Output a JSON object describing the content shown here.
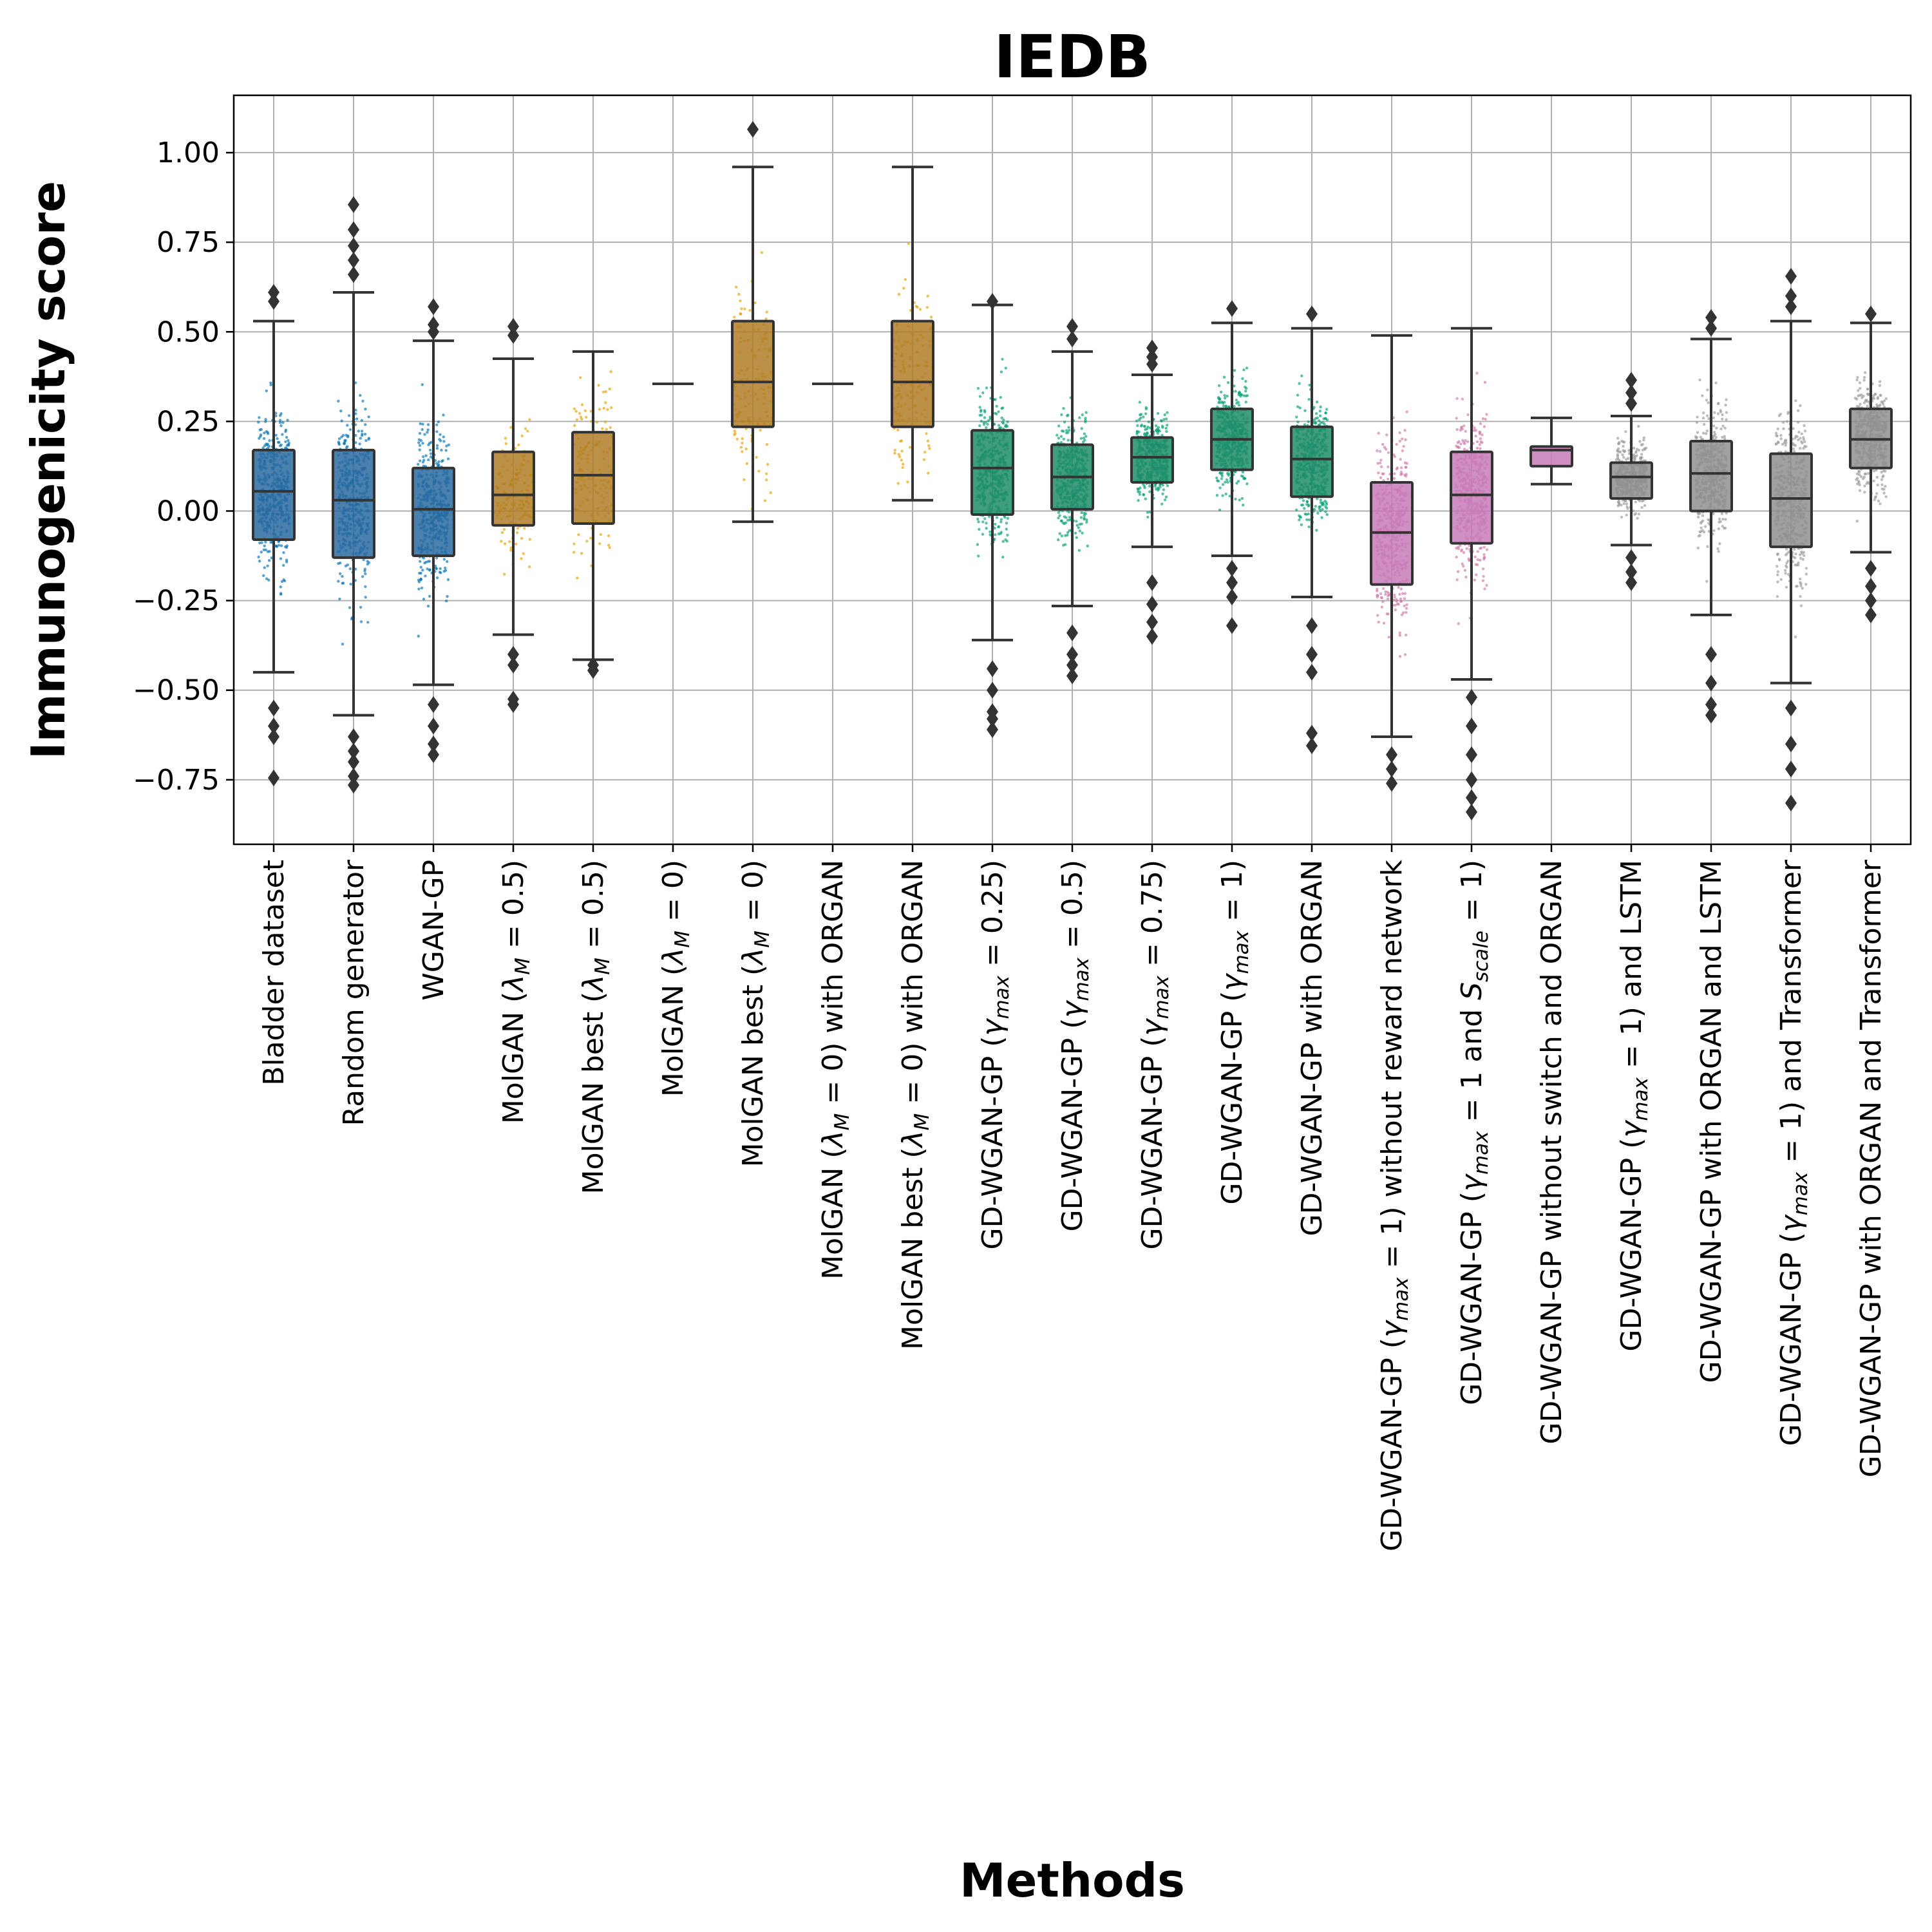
{
  "chart_data": {
    "type": "box",
    "title": "IEDB",
    "xlabel": "Methods",
    "ylabel": "Immunogenicity score",
    "ylim": [
      -0.93,
      1.16
    ],
    "yticks": [
      1.0,
      0.75,
      0.5,
      0.25,
      0.0,
      -0.25,
      -0.5,
      -0.75
    ],
    "ytick_labels": [
      "1.00",
      "0.75",
      "0.50",
      "0.25",
      "0.00",
      "−0.25",
      "−0.50",
      "−0.75"
    ],
    "grid": true,
    "colors": {
      "blue": "#2a6aa0",
      "blue_points": "#0072b2",
      "orange": "#b07c26",
      "orange_points": "#e69f00",
      "green": "#208c6a",
      "green_points": "#009e73",
      "pink": "#c87bb8",
      "pink_points": "#cc79a7",
      "gray": "#8f8f8f",
      "gray_points": "#999999",
      "line": "#333333"
    },
    "series": [
      {
        "label": "Bladder dataset",
        "color": "blue",
        "q1": -0.08,
        "median": 0.055,
        "q3": 0.17,
        "wlow": -0.45,
        "whigh": 0.53,
        "outliers": [
          0.61,
          0.585,
          -0.55,
          -0.6,
          -0.63,
          -0.745
        ],
        "points": true
      },
      {
        "label": "Random generator",
        "color": "blue",
        "q1": -0.13,
        "median": 0.03,
        "q3": 0.17,
        "wlow": -0.57,
        "whigh": 0.61,
        "outliers": [
          0.855,
          0.785,
          0.74,
          0.7,
          0.66,
          -0.63,
          -0.67,
          -0.7,
          -0.74,
          -0.765
        ],
        "points": true
      },
      {
        "label": "WGAN-GP",
        "color": "blue",
        "q1": -0.125,
        "median": 0.005,
        "q3": 0.12,
        "wlow": -0.485,
        "whigh": 0.475,
        "outliers": [
          0.57,
          0.52,
          0.5,
          -0.54,
          -0.6,
          -0.65,
          -0.68
        ],
        "points": true
      },
      {
        "label": "MolGAN (λₘ = 0.5)",
        "label_main": "MolGAN (",
        "label_sym": "λ",
        "label_sub": "M",
        "label_tail": " = 0.5)",
        "color": "orange",
        "q1": -0.04,
        "median": 0.045,
        "q3": 0.165,
        "wlow": -0.345,
        "whigh": 0.425,
        "outliers": [
          0.515,
          0.49,
          -0.4,
          -0.43,
          -0.525,
          -0.54
        ],
        "points": true
      },
      {
        "label": "MolGAN best (λₘ = 0.5)",
        "label_main": "MolGAN best (",
        "label_sym": "λ",
        "label_sub": "M",
        "label_tail": " = 0.5)",
        "color": "orange",
        "q1": -0.035,
        "median": 0.1,
        "q3": 0.22,
        "wlow": -0.415,
        "whigh": 0.445,
        "outliers": [
          -0.43,
          -0.445
        ],
        "points": true
      },
      {
        "label": "MolGAN (λₘ = 0)",
        "label_main": "MolGAN (",
        "label_sym": "λ",
        "label_sub": "M",
        "label_tail": " = 0)",
        "color": "orange",
        "q1": 0.355,
        "median": 0.355,
        "q3": 0.355,
        "wlow": 0.355,
        "whigh": 0.355,
        "outliers": [],
        "points": false
      },
      {
        "label": "MolGAN best (λₘ = 0)",
        "label_main": "MolGAN best (",
        "label_sym": "λ",
        "label_sub": "M",
        "label_tail": " = 0)",
        "color": "orange",
        "q1": 0.235,
        "median": 0.36,
        "q3": 0.53,
        "wlow": -0.03,
        "whigh": 0.96,
        "outliers": [
          1.065
        ],
        "points": true
      },
      {
        "label": "MolGAN (λₘ = 0) with ORGAN",
        "label_main": "MolGAN (",
        "label_sym": "λ",
        "label_sub": "M",
        "label_tail": " = 0) with ORGAN",
        "color": "orange",
        "q1": 0.355,
        "median": 0.355,
        "q3": 0.355,
        "wlow": 0.355,
        "whigh": 0.355,
        "outliers": [],
        "points": false
      },
      {
        "label": "MolGAN best (λₘ = 0) with ORGAN",
        "label_main": "MolGAN best (",
        "label_sym": "λ",
        "label_sub": "M",
        "label_tail": " = 0) with ORGAN",
        "color": "orange",
        "q1": 0.235,
        "median": 0.36,
        "q3": 0.53,
        "wlow": 0.03,
        "whigh": 0.96,
        "outliers": [],
        "points": true
      },
      {
        "label": "GD-WGAN-GP (γmax = 0.25)",
        "label_main": "GD-WGAN-GP (",
        "label_sym": "γ",
        "label_sub": "max",
        "label_tail": " = 0.25)",
        "color": "green",
        "q1": -0.01,
        "median": 0.12,
        "q3": 0.225,
        "wlow": -0.36,
        "whigh": 0.575,
        "outliers": [
          0.585,
          -0.44,
          -0.5,
          -0.56,
          -0.58,
          -0.61
        ],
        "points": true
      },
      {
        "label": "GD-WGAN-GP (γmax = 0.5)",
        "label_main": "GD-WGAN-GP (",
        "label_sym": "γ",
        "label_sub": "max",
        "label_tail": " = 0.5)",
        "color": "green",
        "q1": 0.005,
        "median": 0.095,
        "q3": 0.185,
        "wlow": -0.265,
        "whigh": 0.445,
        "outliers": [
          0.515,
          0.48,
          -0.34,
          -0.4,
          -0.43,
          -0.46
        ],
        "points": true
      },
      {
        "label": "GD-WGAN-GP (γmax = 0.75)",
        "label_main": "GD-WGAN-GP (",
        "label_sym": "γ",
        "label_sub": "max",
        "label_tail": " = 0.75)",
        "color": "green",
        "q1": 0.08,
        "median": 0.15,
        "q3": 0.205,
        "wlow": -0.1,
        "whigh": 0.38,
        "outliers": [
          0.455,
          0.43,
          0.41,
          -0.2,
          -0.26,
          -0.31,
          -0.35
        ],
        "points": true
      },
      {
        "label": "GD-WGAN-GP (γmax = 1)",
        "label_main": "GD-WGAN-GP (",
        "label_sym": "γ",
        "label_sub": "max",
        "label_tail": " = 1)",
        "color": "green",
        "q1": 0.115,
        "median": 0.2,
        "q3": 0.285,
        "wlow": -0.125,
        "whigh": 0.525,
        "outliers": [
          0.565,
          -0.16,
          -0.2,
          -0.24,
          -0.32
        ],
        "points": true
      },
      {
        "label": "GD-WGAN-GP with ORGAN",
        "color": "green",
        "q1": 0.04,
        "median": 0.145,
        "q3": 0.235,
        "wlow": -0.24,
        "whigh": 0.51,
        "outliers": [
          0.55,
          -0.32,
          -0.4,
          -0.45,
          -0.62,
          -0.655
        ],
        "points": true
      },
      {
        "label": "GD-WGAN-GP (γmax = 1) without reward network",
        "label_main": "GD-WGAN-GP (",
        "label_sym": "γ",
        "label_sub": "max",
        "label_tail": " = 1) without reward network",
        "color": "pink",
        "q1": -0.205,
        "median": -0.06,
        "q3": 0.08,
        "wlow": -0.63,
        "whigh": 0.49,
        "outliers": [
          -0.68,
          -0.72,
          -0.76
        ],
        "points": true
      },
      {
        "label": "GD-WGAN-GP (γmax = 1 and Sscale = 1)",
        "label_main": "GD-WGAN-GP (",
        "label_sym": "γ",
        "label_sub": "max",
        "label_tail": " = 1 and ",
        "label_sym2": "S",
        "label_sub2": "scale",
        "label_tail2": " = 1)",
        "color": "pink",
        "q1": -0.09,
        "median": 0.045,
        "q3": 0.165,
        "wlow": -0.47,
        "whigh": 0.51,
        "outliers": [
          -0.52,
          -0.6,
          -0.68,
          -0.75,
          -0.8,
          -0.84
        ],
        "points": true
      },
      {
        "label": "GD-WGAN-GP without switch and ORGAN",
        "color": "pink",
        "q1": 0.125,
        "median": 0.17,
        "q3": 0.18,
        "wlow": 0.075,
        "whigh": 0.26,
        "outliers": [],
        "points": false
      },
      {
        "label": "GD-WGAN-GP (γmax = 1) and LSTM",
        "label_main": "GD-WGAN-GP (",
        "label_sym": "γ",
        "label_sub": "max",
        "label_tail": " = 1) and LSTM",
        "color": "gray",
        "q1": 0.035,
        "median": 0.095,
        "q3": 0.135,
        "wlow": -0.095,
        "whigh": 0.265,
        "outliers": [
          0.365,
          0.33,
          0.3,
          -0.13,
          -0.17,
          -0.2
        ],
        "points": true
      },
      {
        "label": "GD-WGAN-GP with ORGAN and LSTM",
        "color": "gray",
        "q1": 0.0,
        "median": 0.105,
        "q3": 0.195,
        "wlow": -0.29,
        "whigh": 0.48,
        "outliers": [
          0.54,
          0.51,
          -0.4,
          -0.48,
          -0.54,
          -0.57
        ],
        "points": true
      },
      {
        "label": "GD-WGAN-GP (γmax = 1) and Transformer",
        "label_main": "GD-WGAN-GP (",
        "label_sym": "γ",
        "label_sub": "max",
        "label_tail": " = 1) and Transformer",
        "color": "gray",
        "q1": -0.1,
        "median": 0.035,
        "q3": 0.16,
        "wlow": -0.48,
        "whigh": 0.53,
        "outliers": [
          0.655,
          0.6,
          0.57,
          -0.55,
          -0.65,
          -0.72,
          -0.815
        ],
        "points": true
      },
      {
        "label": "GD-WGAN-GP with ORGAN and Transformer",
        "color": "gray",
        "q1": 0.12,
        "median": 0.2,
        "q3": 0.285,
        "wlow": -0.115,
        "whigh": 0.525,
        "outliers": [
          0.55,
          -0.16,
          -0.21,
          -0.25,
          -0.29
        ],
        "points": true
      }
    ]
  }
}
